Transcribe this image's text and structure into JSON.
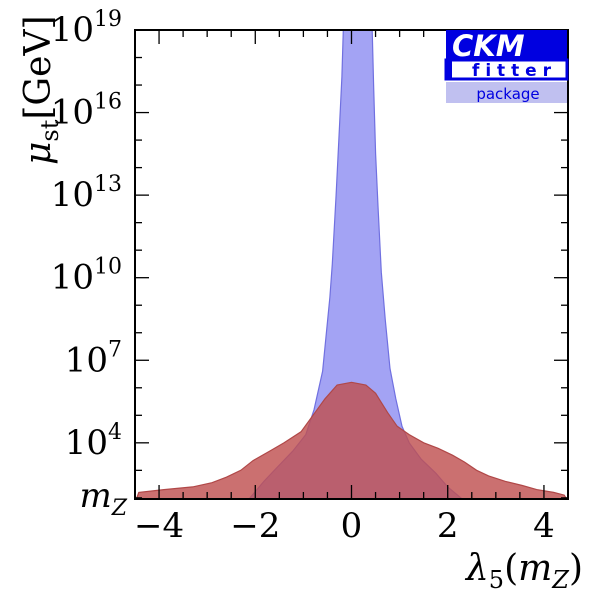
{
  "chart_data": {
    "type": "area",
    "xlabel": "λ5(mZ)",
    "ylabel": "μst[GeV]",
    "xlim": [
      -4.5,
      4.5
    ],
    "ylim_log10": [
      1.959,
      19
    ],
    "yscale": "log",
    "grid": false,
    "legend": "none",
    "x_ticks": [
      -4,
      -2,
      0,
      2,
      4
    ],
    "x_tick_labels": [
      "−4",
      "−2",
      "0",
      "2",
      "4"
    ],
    "y_ticks": [
      {
        "value": 1.959,
        "label": "mZ",
        "base": "m",
        "sub": "Z"
      },
      {
        "value": 4,
        "base": "10",
        "exp": "4"
      },
      {
        "value": 7,
        "base": "10",
        "exp": "7"
      },
      {
        "value": 10,
        "base": "10",
        "exp": "10"
      },
      {
        "value": 13,
        "base": "10",
        "exp": "13"
      },
      {
        "value": 16,
        "base": "10",
        "exp": "16"
      },
      {
        "value": 19,
        "base": "10",
        "exp": "19"
      }
    ],
    "series": [
      {
        "color": "#8080f0",
        "stroke": "#7070e0",
        "opacity": 0.72,
        "polygon": [
          [
            -2.13,
            1.959
          ],
          [
            -1.82,
            2.6
          ],
          [
            -1.55,
            3.1
          ],
          [
            -1.22,
            3.7
          ],
          [
            -0.95,
            4.3
          ],
          [
            -0.78,
            5.2
          ],
          [
            -0.6,
            6.6
          ],
          [
            -0.45,
            9.3
          ],
          [
            -0.4,
            10.5
          ],
          [
            -0.32,
            13.0
          ],
          [
            -0.25,
            15.5
          ],
          [
            -0.2,
            17.3
          ],
          [
            -0.17,
            19.0
          ],
          [
            0.43,
            19.0
          ],
          [
            0.46,
            17.0
          ],
          [
            0.5,
            14.5
          ],
          [
            0.55,
            12.6
          ],
          [
            0.62,
            10.2
          ],
          [
            0.7,
            8.5
          ],
          [
            0.8,
            6.7
          ],
          [
            0.92,
            5.6
          ],
          [
            1.05,
            4.6
          ],
          [
            1.2,
            4.0
          ],
          [
            1.45,
            3.4
          ],
          [
            1.75,
            2.9
          ],
          [
            2.0,
            2.4
          ],
          [
            2.3,
            1.959
          ]
        ]
      },
      {
        "color": "#c05050",
        "stroke": "#b04848",
        "opacity": 0.82,
        "polygon": [
          [
            -4.47,
            1.959
          ],
          [
            -4.42,
            2.2
          ],
          [
            -3.9,
            2.3
          ],
          [
            -3.3,
            2.4
          ],
          [
            -2.9,
            2.55
          ],
          [
            -2.6,
            2.75
          ],
          [
            -2.3,
            3.0
          ],
          [
            -2.05,
            3.35
          ],
          [
            -1.7,
            3.7
          ],
          [
            -1.4,
            4.0
          ],
          [
            -1.05,
            4.4
          ],
          [
            -0.8,
            5.0
          ],
          [
            -0.55,
            5.6
          ],
          [
            -0.3,
            6.1
          ],
          [
            0.0,
            6.2
          ],
          [
            0.3,
            6.1
          ],
          [
            0.5,
            5.8
          ],
          [
            0.75,
            5.1
          ],
          [
            0.95,
            4.6
          ],
          [
            1.2,
            4.3
          ],
          [
            1.5,
            4.0
          ],
          [
            1.8,
            3.8
          ],
          [
            2.1,
            3.55
          ],
          [
            2.35,
            3.3
          ],
          [
            2.6,
            3.0
          ],
          [
            2.85,
            2.8
          ],
          [
            3.2,
            2.6
          ],
          [
            3.55,
            2.45
          ],
          [
            3.85,
            2.3
          ],
          [
            4.2,
            2.2
          ],
          [
            4.42,
            2.1
          ],
          [
            4.47,
            1.959
          ]
        ]
      }
    ]
  },
  "logo": {
    "line1": "CKM",
    "line2": "f i t t e r",
    "line3": "package",
    "dark_color": "#0000e0",
    "light_color": "#c0c0f0"
  }
}
